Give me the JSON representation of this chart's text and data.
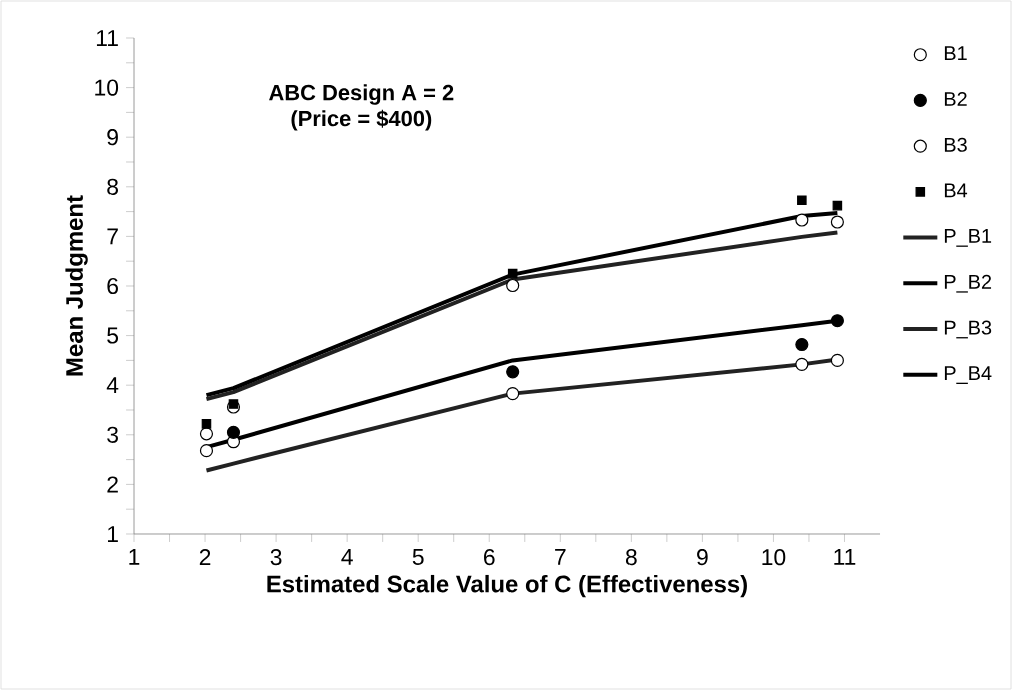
{
  "chart_data": {
    "type": "scatter",
    "title": "ABC Design A = 2",
    "subtitle": "(Price = $400)",
    "xlabel": "Estimated Scale Value of C (Effectiveness)",
    "ylabel": "Mean Judgment",
    "xlim": [
      1,
      11.5
    ],
    "ylim": [
      1,
      11
    ],
    "xticks": [
      1,
      2,
      3,
      4,
      5,
      6,
      7,
      8,
      9,
      10,
      11
    ],
    "yticks": [
      1,
      2,
      3,
      4,
      5,
      6,
      7,
      8,
      9,
      10,
      11
    ],
    "grid": false,
    "legend": "right",
    "series": [
      {
        "name": "B1",
        "marker": "circle",
        "color": "#ffffff",
        "x": [
          2.02,
          2.4,
          6.33,
          10.4,
          10.9
        ],
        "values": [
          2.68,
          2.86,
          3.83,
          4.42,
          4.5
        ]
      },
      {
        "name": "B2",
        "marker": "circle",
        "color": "#000000",
        "x": [
          2.4,
          6.33,
          10.4,
          10.9
        ],
        "values": [
          3.05,
          4.27,
          4.82,
          5.3
        ]
      },
      {
        "name": "B3",
        "marker": "circle",
        "color": "#ffffff",
        "x": [
          2.02,
          2.4,
          6.33,
          10.4,
          10.9
        ],
        "values": [
          3.02,
          3.56,
          6.01,
          7.33,
          7.29
        ]
      },
      {
        "name": "B4",
        "marker": "square",
        "color": "#000000",
        "x": [
          2.02,
          2.4,
          6.33,
          10.4,
          10.9
        ],
        "values": [
          3.22,
          3.62,
          6.25,
          7.73,
          7.62
        ]
      },
      {
        "name": "P_B1",
        "type": "line",
        "marker": "none",
        "color": "#222222",
        "x": [
          2.02,
          2.4,
          6.33,
          10.4,
          10.9
        ],
        "values": [
          2.28,
          2.42,
          3.83,
          4.42,
          4.52
        ]
      },
      {
        "name": "P_B2",
        "type": "line",
        "marker": "none",
        "color": "#000000",
        "x": [
          2.02,
          2.4,
          6.33,
          10.4,
          10.9
        ],
        "values": [
          2.75,
          2.9,
          4.5,
          5.21,
          5.3
        ]
      },
      {
        "name": "P_B3",
        "type": "line",
        "marker": "none",
        "color": "#222222",
        "x": [
          2.02,
          2.4,
          6.33,
          10.4,
          10.9
        ],
        "values": [
          3.72,
          3.86,
          6.13,
          6.99,
          7.08
        ]
      },
      {
        "name": "P_B4",
        "type": "line",
        "marker": "none",
        "color": "#000000",
        "x": [
          2.02,
          2.4,
          6.33,
          10.4,
          10.9
        ],
        "values": [
          3.8,
          3.94,
          6.23,
          7.41,
          7.47
        ]
      }
    ]
  }
}
